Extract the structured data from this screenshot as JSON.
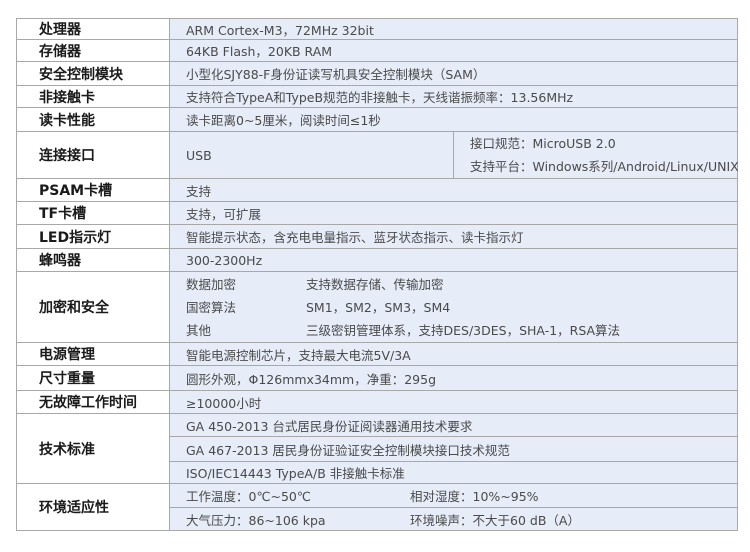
{
  "specs": {
    "processor": {
      "label": "处理器",
      "value": "ARM Cortex-M3，72MHz 32bit"
    },
    "memory": {
      "label": "存储器",
      "value": "64KB Flash，20KB RAM"
    },
    "sam": {
      "label": "安全控制模块",
      "value": "小型化SJY88-F身份证读写机具安全控制模块（SAM）"
    },
    "contactless": {
      "label": "非接触卡",
      "value": "支持符合TypeA和TypeB规范的非接触卡，天线谐振频率：13.56MHz"
    },
    "read_perf": {
      "label": "读卡性能",
      "value": "读卡距离0~5厘米，阅读时间≤1秒"
    },
    "interface": {
      "label": "连接接口",
      "type": "USB",
      "lines": [
        "接口规范：MicroUSB 2.0",
        "支持平台：Windows系列/Android/Linux/UNIX"
      ]
    },
    "psam": {
      "label": "PSAM卡槽",
      "value": "支持"
    },
    "tf": {
      "label": "TF卡槽",
      "value": "支持，可扩展"
    },
    "led": {
      "label": "LED指示灯",
      "value": "智能提示状态，含充电电量指示、蓝牙状态指示、读卡指示灯"
    },
    "buzzer": {
      "label": "蜂鸣器",
      "value": "300-2300Hz"
    },
    "security": {
      "label": "加密和安全",
      "items": [
        {
          "name": "数据加密",
          "value": "支持数据存储、传输加密"
        },
        {
          "name": "国密算法",
          "value": "SM1，SM2，SM3，SM4"
        },
        {
          "name": "其他",
          "value": "三级密钥管理体系，支持DES/3DES，SHA-1，RSA算法"
        }
      ]
    },
    "power": {
      "label": "电源管理",
      "value": "智能电源控制芯片，支持最大电流5V/3A"
    },
    "size": {
      "label": "尺寸重量",
      "value": "圆形外观，Φ126mmx34mm，净重：295g"
    },
    "mtbf": {
      "label": "无故障工作时间",
      "value": "≥10000小时"
    },
    "standards": {
      "label": "技术标准",
      "items": [
        "GA 450-2013 台式居民身份证阅读器通用技术要求",
        "GA 467-2013 居民身份证验证安全控制模块接口技术规范",
        "ISO/IEC14443 TypeA/B 非接触卡标准"
      ]
    },
    "environment": {
      "label": "环境适应性",
      "rows": [
        [
          "工作温度：0℃~50℃",
          "相对湿度：10%~95%"
        ],
        [
          "大气压力：86~106 kpa",
          "环境噪声：不大于60 dB（A）"
        ]
      ]
    }
  },
  "colors": {
    "value_bg": "#e6ecf8",
    "border": "#a8a8a8"
  }
}
